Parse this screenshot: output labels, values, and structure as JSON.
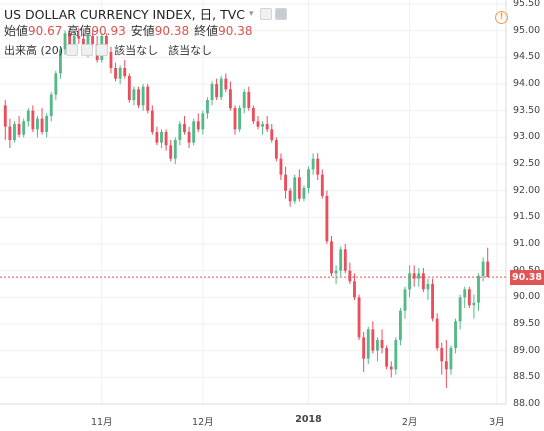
{
  "legend": {
    "title": "US DOLLAR CURRENCY INDEX, 日, TVC",
    "open_label": "始値",
    "open_value": "90.67",
    "high_label": "高値",
    "high_value": "90.93",
    "low_label": "安値",
    "low_value": "90.38",
    "close_label": "終値",
    "close_value": "90.38",
    "volume_label": "出来高 (20)",
    "na_1": "該当なし",
    "na_2": "該当なし"
  },
  "icons": [
    "chevron-down-icon",
    "eye-icon",
    "settings-icon",
    "close-icon",
    "alert-icon"
  ],
  "last_price_tag": "90.38",
  "colors": {
    "up": "#53b987",
    "down": "#eb4d5c",
    "price_line": "#e05555",
    "grid": "#eef0f2"
  },
  "chart_data": {
    "type": "candlestick",
    "ylim": [
      88.0,
      95.5
    ],
    "yticks": [
      "95.50",
      "95.00",
      "94.50",
      "94.00",
      "93.50",
      "93.00",
      "92.50",
      "92.00",
      "91.50",
      "91.00",
      "90.50",
      "90.00",
      "89.50",
      "89.00",
      "88.50",
      "88.00"
    ],
    "xticks": [
      {
        "label": "11月",
        "i": 21,
        "bold": false
      },
      {
        "label": "12月",
        "i": 43,
        "bold": false
      },
      {
        "label": "2018",
        "i": 66,
        "bold": true
      },
      {
        "label": "2月",
        "i": 88,
        "bold": false
      },
      {
        "label": "3月",
        "i": 107,
        "bold": false
      }
    ],
    "last_price": 90.38,
    "candles": [
      [
        93.6,
        93.7,
        92.95,
        93.2
      ],
      [
        93.2,
        93.35,
        92.8,
        92.95
      ],
      [
        92.95,
        93.3,
        92.9,
        93.25
      ],
      [
        93.25,
        93.4,
        93.0,
        93.05
      ],
      [
        93.05,
        93.35,
        93.0,
        93.3
      ],
      [
        93.3,
        93.55,
        93.2,
        93.5
      ],
      [
        93.5,
        93.6,
        93.1,
        93.15
      ],
      [
        93.15,
        93.4,
        93.0,
        93.35
      ],
      [
        93.35,
        93.55,
        93.05,
        93.1
      ],
      [
        93.1,
        93.45,
        93.0,
        93.4
      ],
      [
        93.4,
        93.85,
        93.3,
        93.8
      ],
      [
        93.8,
        94.25,
        93.7,
        94.2
      ],
      [
        94.2,
        94.7,
        94.1,
        94.65
      ],
      [
        94.65,
        95.0,
        94.55,
        94.95
      ],
      [
        94.95,
        95.05,
        94.6,
        94.7
      ],
      [
        94.7,
        95.0,
        94.6,
        94.9
      ],
      [
        94.9,
        95.05,
        94.75,
        94.85
      ],
      [
        94.85,
        94.95,
        94.55,
        94.6
      ],
      [
        94.6,
        94.95,
        94.5,
        94.9
      ],
      [
        94.9,
        95.0,
        94.7,
        94.75
      ],
      [
        94.75,
        94.9,
        94.4,
        94.45
      ],
      [
        94.45,
        94.95,
        94.4,
        94.9
      ],
      [
        94.9,
        94.95,
        94.55,
        94.6
      ],
      [
        94.6,
        94.7,
        94.2,
        94.3
      ],
      [
        94.3,
        94.4,
        94.05,
        94.1
      ],
      [
        94.1,
        94.35,
        94.0,
        94.3
      ],
      [
        94.3,
        94.45,
        94.1,
        94.15
      ],
      [
        94.15,
        94.2,
        93.65,
        93.7
      ],
      [
        93.7,
        93.95,
        93.6,
        93.9
      ],
      [
        93.9,
        93.95,
        93.55,
        93.6
      ],
      [
        93.6,
        94.0,
        93.5,
        93.95
      ],
      [
        93.95,
        94.0,
        93.45,
        93.5
      ],
      [
        93.5,
        93.6,
        93.05,
        93.1
      ],
      [
        93.1,
        93.2,
        92.85,
        92.9
      ],
      [
        92.9,
        93.15,
        92.8,
        93.1
      ],
      [
        93.1,
        93.15,
        92.75,
        92.85
      ],
      [
        92.85,
        92.95,
        92.55,
        92.6
      ],
      [
        92.6,
        93.0,
        92.5,
        92.95
      ],
      [
        92.95,
        93.3,
        92.85,
        93.25
      ],
      [
        93.25,
        93.4,
        93.05,
        93.1
      ],
      [
        93.1,
        93.2,
        92.8,
        92.9
      ],
      [
        92.9,
        93.35,
        92.85,
        93.3
      ],
      [
        93.3,
        93.45,
        93.1,
        93.15
      ],
      [
        93.15,
        93.5,
        93.05,
        93.45
      ],
      [
        93.45,
        93.75,
        93.35,
        93.7
      ],
      [
        93.7,
        94.05,
        93.6,
        94.0
      ],
      [
        94.0,
        94.1,
        93.7,
        93.75
      ],
      [
        93.75,
        94.15,
        93.7,
        94.1
      ],
      [
        94.1,
        94.2,
        93.85,
        93.9
      ],
      [
        93.9,
        94.05,
        93.5,
        93.55
      ],
      [
        93.55,
        93.6,
        93.05,
        93.15
      ],
      [
        93.15,
        93.6,
        93.1,
        93.55
      ],
      [
        93.55,
        93.9,
        93.45,
        93.85
      ],
      [
        93.85,
        93.95,
        93.5,
        93.55
      ],
      [
        93.55,
        93.6,
        93.25,
        93.3
      ],
      [
        93.3,
        93.4,
        93.15,
        93.2
      ],
      [
        93.2,
        93.3,
        93.05,
        93.25
      ],
      [
        93.25,
        93.4,
        93.1,
        93.15
      ],
      [
        93.15,
        93.25,
        92.9,
        92.95
      ],
      [
        92.95,
        93.0,
        92.55,
        92.6
      ],
      [
        92.6,
        92.7,
        92.2,
        92.3
      ],
      [
        92.3,
        92.45,
        91.85,
        92.0
      ],
      [
        92.0,
        92.05,
        91.7,
        91.8
      ],
      [
        91.8,
        92.3,
        91.75,
        92.25
      ],
      [
        92.25,
        92.4,
        91.8,
        91.85
      ],
      [
        91.85,
        92.1,
        91.8,
        92.05
      ],
      [
        92.05,
        92.45,
        91.95,
        92.4
      ],
      [
        92.4,
        92.7,
        92.3,
        92.6
      ],
      [
        92.6,
        92.7,
        92.2,
        92.3
      ],
      [
        92.3,
        92.4,
        91.85,
        91.9
      ],
      [
        91.9,
        92.0,
        91.0,
        91.05
      ],
      [
        91.05,
        91.15,
        90.4,
        90.45
      ],
      [
        90.45,
        90.6,
        90.25,
        90.5
      ],
      [
        90.5,
        90.95,
        90.4,
        90.9
      ],
      [
        90.9,
        91.0,
        90.45,
        90.5
      ],
      [
        90.5,
        90.65,
        90.25,
        90.3
      ],
      [
        90.3,
        90.45,
        89.95,
        90.0
      ],
      [
        90.0,
        90.05,
        89.2,
        89.25
      ],
      [
        89.25,
        89.35,
        88.6,
        88.85
      ],
      [
        88.85,
        89.45,
        88.75,
        89.4
      ],
      [
        89.4,
        89.55,
        88.95,
        89.0
      ],
      [
        89.0,
        89.25,
        88.8,
        89.2
      ],
      [
        89.2,
        89.4,
        88.95,
        89.05
      ],
      [
        89.05,
        89.1,
        88.65,
        88.7
      ],
      [
        88.7,
        88.8,
        88.5,
        88.65
      ],
      [
        88.65,
        89.25,
        88.55,
        89.2
      ],
      [
        89.2,
        89.8,
        89.1,
        89.75
      ],
      [
        89.75,
        90.2,
        89.6,
        90.15
      ],
      [
        90.15,
        90.6,
        90.0,
        90.45
      ],
      [
        90.45,
        90.6,
        90.2,
        90.35
      ],
      [
        90.35,
        90.55,
        90.2,
        90.45
      ],
      [
        90.45,
        90.55,
        90.1,
        90.15
      ],
      [
        90.15,
        90.35,
        89.95,
        90.25
      ],
      [
        90.25,
        90.35,
        89.55,
        89.6
      ],
      [
        89.6,
        89.7,
        89.0,
        89.05
      ],
      [
        89.05,
        89.15,
        88.55,
        88.8
      ],
      [
        88.8,
        89.2,
        88.3,
        88.65
      ],
      [
        88.65,
        89.1,
        88.55,
        89.05
      ],
      [
        89.05,
        89.6,
        88.95,
        89.55
      ],
      [
        89.55,
        90.05,
        89.4,
        90.0
      ],
      [
        90.0,
        90.2,
        89.8,
        90.15
      ],
      [
        90.15,
        90.2,
        89.8,
        89.85
      ],
      [
        89.85,
        90.05,
        89.6,
        89.9
      ],
      [
        89.9,
        90.45,
        89.75,
        90.4
      ],
      [
        90.4,
        90.75,
        90.3,
        90.67
      ],
      [
        90.67,
        90.93,
        90.38,
        90.38
      ]
    ]
  }
}
